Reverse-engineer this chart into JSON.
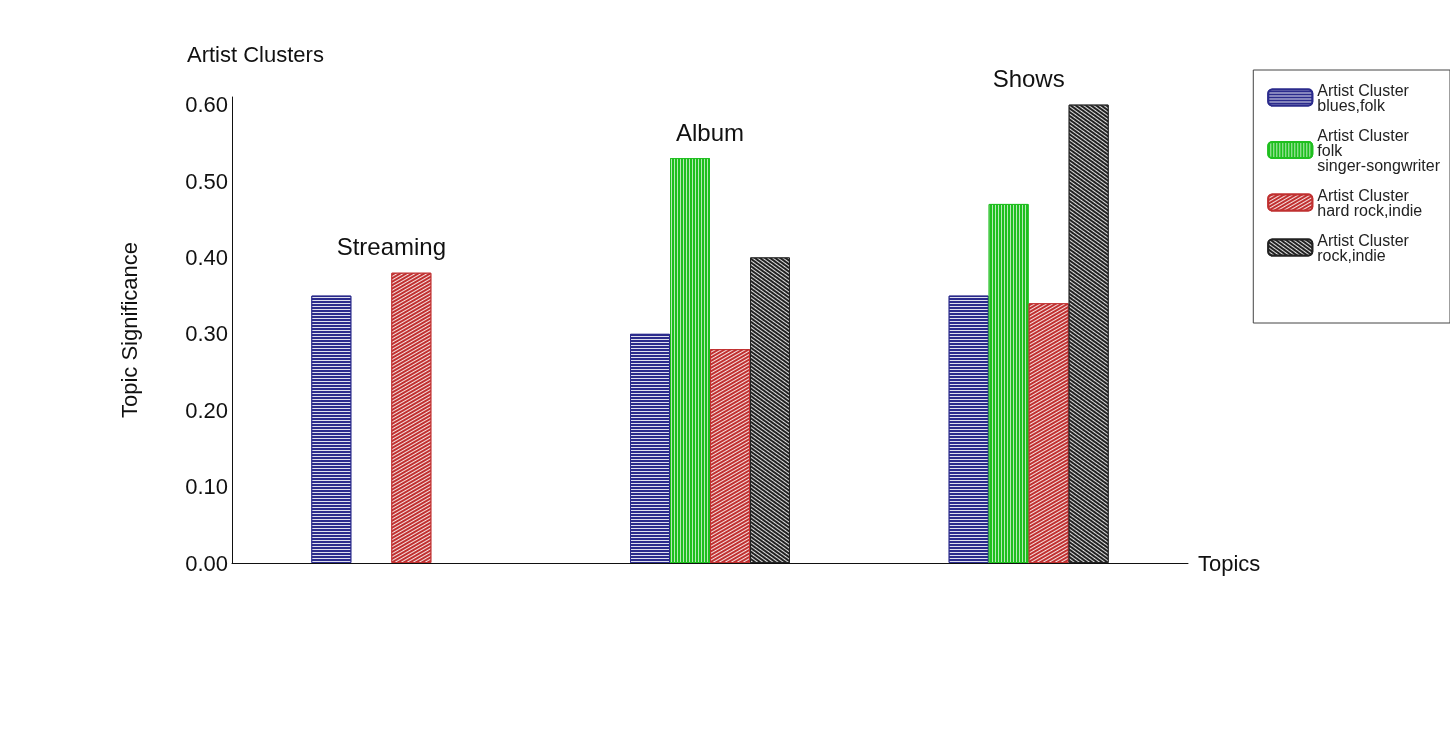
{
  "chart_data": {
    "type": "bar",
    "title": "Artist Clusters",
    "xlabel": "Topics",
    "ylabel": "Topic Significance",
    "categories": [
      "Streaming",
      "Album",
      "Shows"
    ],
    "series": [
      {
        "name": "Artist Cluster\nblues,folk",
        "color": "#2b2b8c",
        "values": [
          0.35,
          0.3,
          0.35
        ]
      },
      {
        "name": "Artist Cluster\nfolk\nsinger-songwriter",
        "color": "#1fbf1f",
        "values": [
          null,
          0.53,
          0.47
        ]
      },
      {
        "name": "Artist Cluster\nhard rock,indie",
        "color": "#c03030",
        "values": [
          0.38,
          0.28,
          0.34
        ]
      },
      {
        "name": "Artist Cluster\nrock,indie",
        "color": "#222222",
        "values": [
          null,
          0.4,
          0.6
        ]
      }
    ],
    "ylim": [
      0,
      0.61
    ],
    "yticks": [
      {
        "value": 0,
        "label": "0.00"
      },
      {
        "value": 0.1,
        "label": "0.10"
      },
      {
        "value": 0.2,
        "label": "0.20"
      },
      {
        "value": 0.3,
        "label": "0.30"
      },
      {
        "value": 0.4,
        "label": "0.40"
      },
      {
        "value": 0.5,
        "label": "0.50"
      },
      {
        "value": 0.6,
        "label": "0.60"
      }
    ],
    "grid": false,
    "legend": "top right"
  }
}
